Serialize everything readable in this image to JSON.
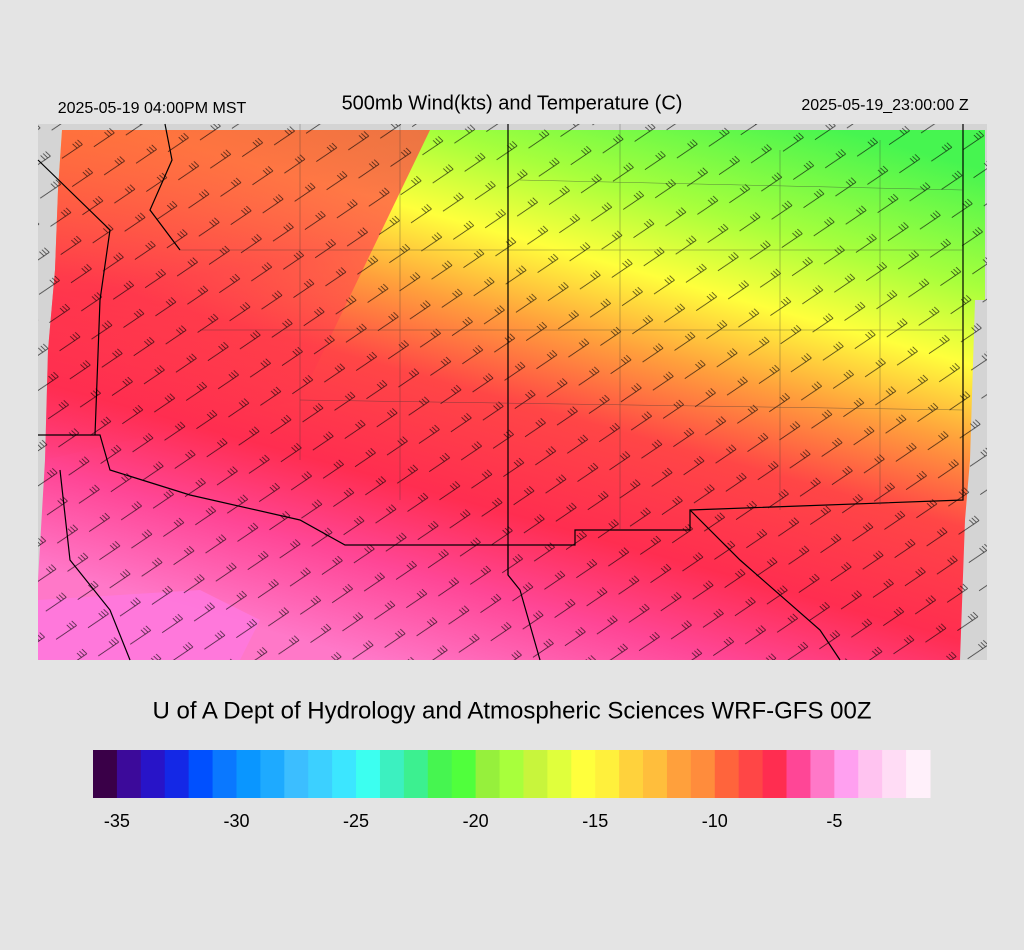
{
  "map": {
    "title": "500mb Wind(kts) and Temperature (C)",
    "local_time": "2025-05-19 04:00PM MST",
    "valid_time": "2025-05-19_23:00:00 Z",
    "credit": "U of A Dept of Hydrology and Atmospheric Sciences WRF-GFS 00Z",
    "colorbar": {
      "range": [
        -36,
        -1
      ],
      "ticks": [
        -35,
        -30,
        -25,
        -20,
        -15,
        -10,
        -5
      ],
      "colors": [
        "#3a0048",
        "#3c0a9a",
        "#2814c8",
        "#1428e6",
        "#0050ff",
        "#0a78ff",
        "#0a96ff",
        "#1eaaff",
        "#3cbeff",
        "#3cd0ff",
        "#3ce6ff",
        "#3cfff0",
        "#3cf0c0",
        "#3cf090",
        "#46f550",
        "#50ff3c",
        "#96f03c",
        "#a8ff3c",
        "#c8f53c",
        "#e0ff3c",
        "#ffff3c",
        "#fff03c",
        "#ffd23c",
        "#ffbe3c",
        "#ffa03c",
        "#ff8c3c",
        "#ff643c",
        "#ff4646",
        "#ff2d50",
        "#ff4696",
        "#ff78c8",
        "#ffa0f0",
        "#ffc3f0",
        "#ffdcf5",
        "#fff0fa"
      ]
    }
  }
}
